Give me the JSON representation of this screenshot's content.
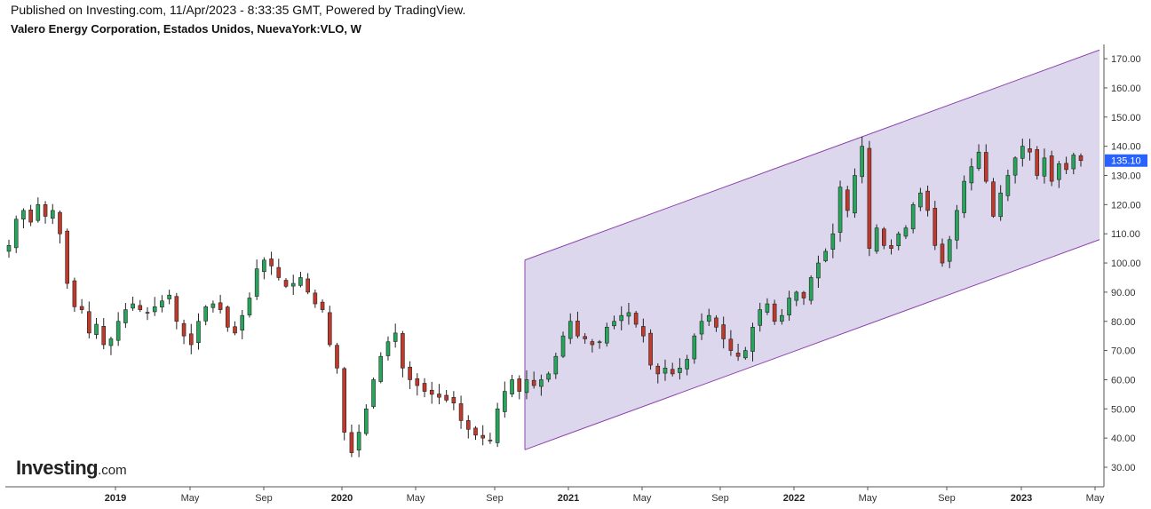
{
  "header": {
    "published": "Published on Investing.com, 11/Apr/2023 - 8:33:35 GMT, Powered by TradingView.",
    "symbol": "Valero Energy Corporation, Estados Unidos, NuevaYork:VLO, W"
  },
  "logo": {
    "main": "Investing",
    "suffix": ".com"
  },
  "colors": {
    "up": "#26a65b",
    "down": "#c0392b",
    "channel_fill": "#d6d0ea",
    "channel_line": "#8e44ad",
    "price_tag": "#2962ff"
  },
  "chart_data": {
    "type": "candlestick",
    "interval": "W",
    "ylim": [
      25,
      175
    ],
    "y_ticks": [
      "170.00",
      "160.00",
      "150.00",
      "140.00",
      "130.00",
      "120.00",
      "110.00",
      "100.00",
      "90.00",
      "80.00",
      "70.00",
      "60.00",
      "50.00",
      "40.00",
      "30.00"
    ],
    "x_ticks": [
      {
        "label": "2019",
        "year": true
      },
      {
        "label": "May",
        "year": false
      },
      {
        "label": "Sep",
        "year": false
      },
      {
        "label": "2020",
        "year": true
      },
      {
        "label": "May",
        "year": false
      },
      {
        "label": "Sep",
        "year": false
      },
      {
        "label": "2021",
        "year": true
      },
      {
        "label": "May",
        "year": false
      },
      {
        "label": "Sep",
        "year": false
      },
      {
        "label": "2022",
        "year": true
      },
      {
        "label": "May",
        "year": false
      },
      {
        "label": "Sep",
        "year": false
      },
      {
        "label": "2023",
        "year": true
      },
      {
        "label": "May",
        "year": false
      }
    ],
    "last_price": "135.10",
    "channel": {
      "start": "2020-10",
      "end": "2023-05",
      "upper": [
        101,
        173
      ],
      "lower": [
        36,
        108
      ]
    },
    "close_path": [
      106,
      115,
      118,
      114,
      120,
      116,
      118,
      110,
      93,
      85,
      84,
      76,
      79,
      72,
      74,
      80,
      84,
      86,
      84,
      83,
      85,
      87,
      89,
      80,
      75,
      72,
      80,
      85,
      86,
      84,
      78,
      76,
      82,
      88,
      98,
      101,
      99,
      95,
      92,
      93,
      95,
      90,
      86,
      84,
      72,
      64,
      42,
      35,
      42,
      50,
      60,
      68,
      73,
      76,
      64,
      60,
      58,
      56,
      55,
      54,
      53,
      52,
      46,
      43,
      41,
      40,
      39,
      50,
      56,
      60,
      56,
      60,
      58,
      60,
      62,
      68,
      75,
      80,
      75,
      74,
      72,
      73,
      78,
      80,
      82,
      83,
      79,
      75,
      65,
      62,
      64,
      62,
      64,
      67,
      75,
      80,
      82,
      78,
      74,
      70,
      68,
      70,
      78,
      84,
      86,
      80,
      82,
      88,
      90,
      88,
      95,
      100,
      104,
      110,
      126,
      118,
      130,
      140,
      105,
      112,
      106,
      105,
      110,
      112,
      120,
      124,
      118,
      106,
      100,
      108,
      118,
      128,
      133,
      138,
      128,
      116,
      124,
      130,
      136,
      140,
      138,
      130,
      136,
      128,
      134,
      132,
      137,
      135.1
    ]
  }
}
